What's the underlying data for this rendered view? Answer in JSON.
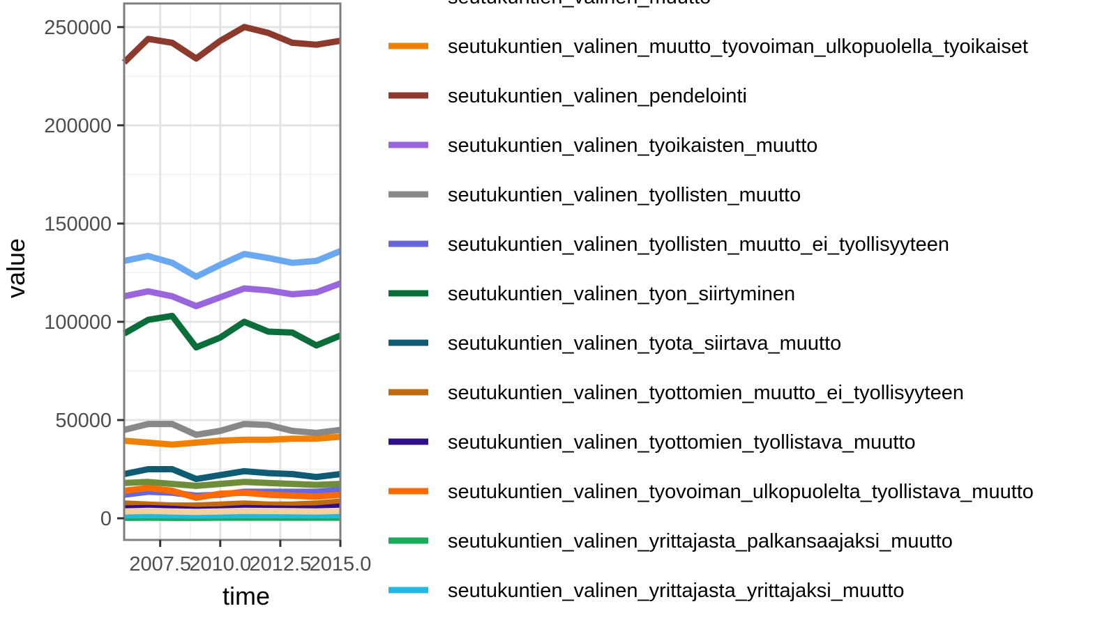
{
  "chart_data": {
    "type": "line",
    "xlabel": "time",
    "ylabel": "value",
    "xlim": [
      2006,
      2015
    ],
    "ylim": [
      -11000,
      262000
    ],
    "x_ticks": [
      2007.5,
      2010.0,
      2012.5,
      2015.0
    ],
    "x_tick_labels": [
      "2007.5",
      "2010.0",
      "2012.5",
      "2015.0"
    ],
    "y_ticks": [
      0,
      50000,
      100000,
      150000,
      200000,
      250000
    ],
    "y_tick_labels": [
      "0",
      "50000",
      "100000",
      "150000",
      "200000",
      "250000"
    ],
    "grid": true,
    "legend_position": "right",
    "legend_partial_top_label": "seutukuntien_valinen_muutto",
    "x": [
      2006,
      2007,
      2008,
      2009,
      2010,
      2011,
      2012,
      2013,
      2014,
      2015
    ],
    "series": [
      {
        "name": "seutukuntien_valinen_muutto",
        "color": "#6aa8f0",
        "in_legend": false,
        "values": [
          131000,
          133500,
          130000,
          123000,
          129000,
          134500,
          132500,
          130000,
          131000,
          136000
        ]
      },
      {
        "name": "seutukuntien_valinen_muutto_tyovoiman_ulkopuolella_tyoikaiset",
        "color": "#f08000",
        "in_legend": true,
        "values": [
          39500,
          38500,
          37500,
          38500,
          39500,
          40000,
          40000,
          40500,
          40500,
          41500
        ]
      },
      {
        "name": "seutukuntien_valinen_pendelointi",
        "color": "#8b3a2b",
        "in_legend": true,
        "values": [
          232000,
          244000,
          242000,
          234000,
          243000,
          250000,
          247000,
          242000,
          241000,
          243000
        ]
      },
      {
        "name": "seutukuntien_valinen_tyoikaisten_muutto",
        "color": "#9966dd",
        "in_legend": true,
        "values": [
          113000,
          115500,
          113000,
          108000,
          112500,
          117000,
          116000,
          114000,
          115000,
          119500
        ]
      },
      {
        "name": "seutukuntien_valinen_tyollisten_muutto",
        "color": "#888888",
        "in_legend": true,
        "values": [
          45000,
          48000,
          48000,
          42500,
          44500,
          48000,
          47500,
          44500,
          43500,
          45000
        ]
      },
      {
        "name": "seutukuntien_valinen_tyollisten_muutto_ei_tyollisyyteen",
        "color": "#6666dd",
        "in_legend": true,
        "values": [
          12000,
          13500,
          13000,
          11500,
          12000,
          13500,
          13500,
          13500,
          13500,
          14500
        ]
      },
      {
        "name": "seutukuntien_valinen_tyon_siirtyminen",
        "color": "#0b6e3a",
        "in_legend": true,
        "values": [
          94000,
          101000,
          103000,
          87000,
          92000,
          100000,
          95000,
          94500,
          88000,
          93000
        ]
      },
      {
        "name": "seutukuntien_valinen_tyota_siirtava_muutto",
        "color": "#0e5b73",
        "in_legend": true,
        "values": [
          22500,
          25000,
          25000,
          20000,
          22000,
          24000,
          23000,
          22500,
          21000,
          22500
        ]
      },
      {
        "name": "seutukuntien_valinen_tyottomien_muutto_ei_tyollisyyteen",
        "color": "#c06a10",
        "in_legend": true,
        "values": [
          7500,
          7000,
          6500,
          6500,
          7000,
          7500,
          7000,
          7000,
          7500,
          8500
        ]
      },
      {
        "name": "seutukuntien_valinen_tyottomien_tyollistava_muutto",
        "color": "#2e0e8a",
        "in_legend": true,
        "values": [
          5000,
          5200,
          4800,
          4200,
          4500,
          5200,
          5000,
          4800,
          5000,
          6000
        ]
      },
      {
        "name": "seutukuntien_valinen_tyovoiman_ulkopuolelta_tyollistava_muutto",
        "color": "#ff6a00",
        "in_legend": true,
        "values": [
          14000,
          15500,
          14000,
          10500,
          12500,
          13000,
          12000,
          11500,
          11000,
          12000
        ]
      },
      {
        "name": "seutukuntien_valinen_yrittajasta_palkansaajaksi_muutto",
        "color": "#1aa85a",
        "in_legend": true,
        "values": [
          200,
          300,
          200,
          200,
          300,
          300,
          300,
          300,
          300,
          300
        ]
      },
      {
        "name": "seutukuntien_valinen_yrittajasta_yrittajaksi_muutto",
        "color": "#22b8e0",
        "in_legend": true,
        "values": [
          1500,
          1600,
          1500,
          1400,
          1500,
          1600,
          1600,
          1500,
          1500,
          1600
        ]
      },
      {
        "name": "",
        "color": "#f2d3a0",
        "in_legend": false,
        "values": [
          3500,
          3800,
          3500,
          3300,
          3500,
          3800,
          3700,
          3600,
          3500,
          3800
        ]
      },
      {
        "name": "",
        "color": "#6e8c3a",
        "in_legend": false,
        "values": [
          18000,
          18500,
          17500,
          16500,
          17500,
          18500,
          18000,
          17500,
          17000,
          17500
        ]
      }
    ]
  }
}
